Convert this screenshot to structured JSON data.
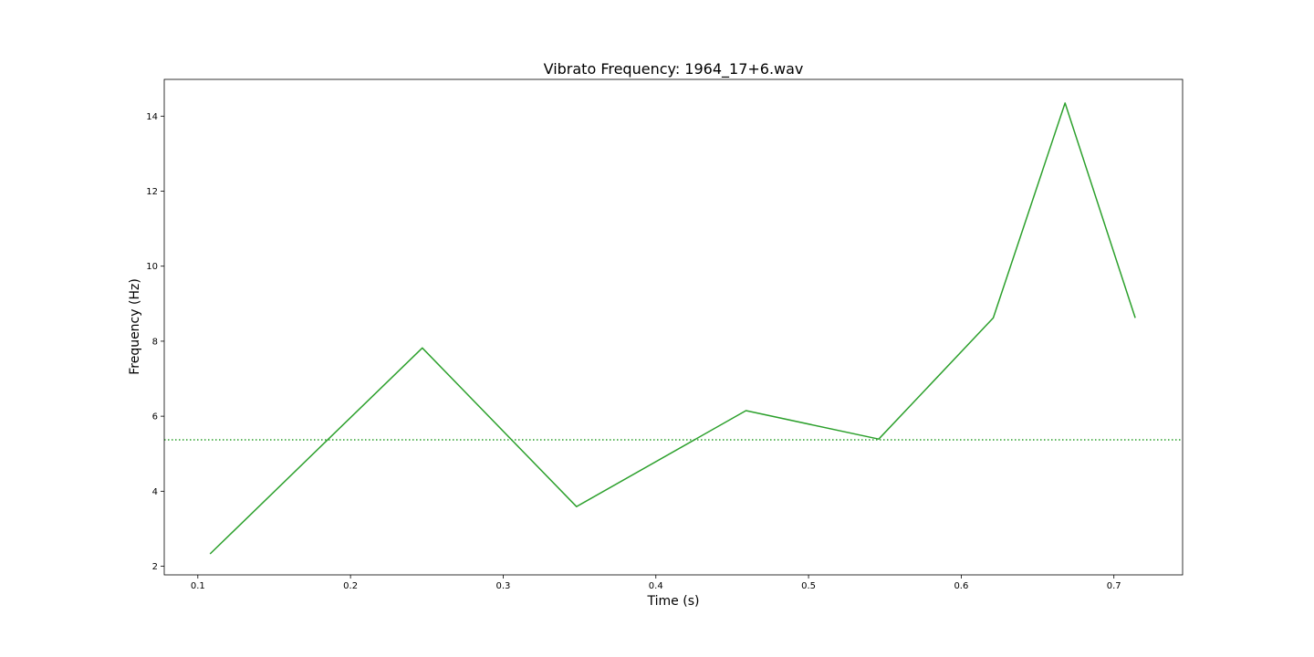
{
  "chart_data": {
    "type": "line",
    "title": "Vibrato Frequency: 1964_17+6.wav",
    "xlabel": "Time (s)",
    "ylabel": "Frequency (Hz)",
    "xlim": [
      0.078,
      0.745
    ],
    "ylim": [
      1.77,
      14.98
    ],
    "xticks": [
      0.1,
      0.2,
      0.3,
      0.4,
      0.5,
      0.6,
      0.7
    ],
    "xtick_labels": [
      "0.1",
      "0.2",
      "0.3",
      "0.4",
      "0.5",
      "0.6",
      "0.7"
    ],
    "yticks": [
      2,
      4,
      6,
      8,
      10,
      12,
      14
    ],
    "ytick_labels": [
      "2",
      "4",
      "6",
      "8",
      "10",
      "12",
      "14"
    ],
    "grid": false,
    "series": [
      {
        "color": "#2ca02c",
        "style": "solid",
        "x": [
          0.108,
          0.247,
          0.348,
          0.459,
          0.546,
          0.621,
          0.668,
          0.714
        ],
        "y": [
          2.33,
          7.82,
          3.59,
          6.15,
          5.39,
          8.62,
          14.35,
          8.62
        ]
      }
    ],
    "reference_line": {
      "color": "#2ca02c",
      "style": "dotted",
      "y": 5.37
    }
  }
}
